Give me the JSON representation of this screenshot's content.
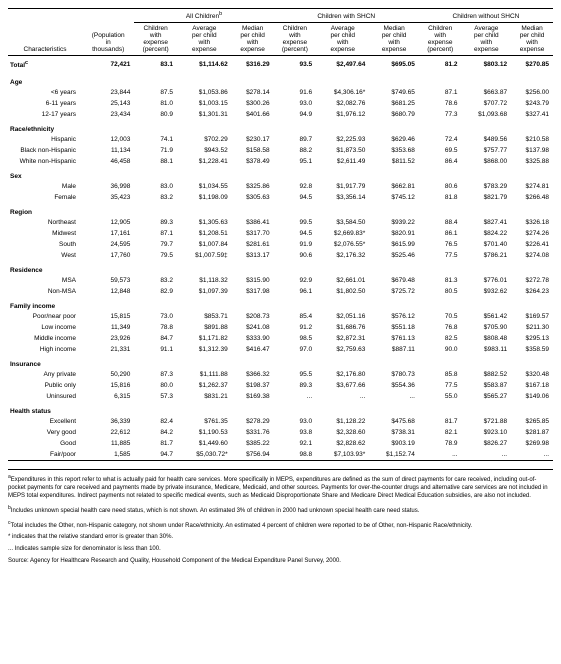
{
  "headers": {
    "char": "Characteristics",
    "pop": "(Population<br>in<br>thousands)",
    "groups": [
      "All Children<sup>b</sup>",
      "Children with SHCN",
      "Children without SHCN"
    ],
    "sub": [
      "Children<br>with<br>expense<br>(percent)",
      "Average<br>per child<br>with<br>expense",
      "Median<br>per child<br>with<br>expense"
    ]
  },
  "sections": [
    {
      "title": "Total<sup>c</sup>",
      "isTotal": true,
      "rows": [
        {
          "label": "",
          "vals": [
            "72,421",
            "83.1",
            "$1,114.62",
            "$316.29",
            "93.5",
            "$2,497.64",
            "$695.05",
            "81.2",
            "$803.12",
            "$270.85"
          ]
        }
      ]
    },
    {
      "title": "Age",
      "rows": [
        {
          "label": "<6 years",
          "vals": [
            "23,844",
            "87.5",
            "$1,053.86",
            "$278.14",
            "91.6",
            "$4,306.16*",
            "$749.65",
            "87.1",
            "$663.87",
            "$256.00"
          ]
        },
        {
          "label": "6-11 years",
          "vals": [
            "25,143",
            "81.0",
            "$1,003.15",
            "$300.26",
            "93.0",
            "$2,082.76",
            "$681.25",
            "78.6",
            "$707.72",
            "$243.79"
          ]
        },
        {
          "label": "12-17 years",
          "vals": [
            "23,434",
            "80.9",
            "$1,301.31",
            "$401.66",
            "94.9",
            "$1,976.12",
            "$680.79",
            "77.3",
            "$1,093.68",
            "$327.41"
          ]
        }
      ]
    },
    {
      "title": "Race/ethnicity",
      "rows": [
        {
          "label": "Hispanic",
          "vals": [
            "12,003",
            "74.1",
            "$702.29",
            "$230.17",
            "89.7",
            "$2,225.93",
            "$629.46",
            "72.4",
            "$489.56",
            "$210.58"
          ]
        },
        {
          "label": "Black non-Hispanic",
          "vals": [
            "11,134",
            "71.9",
            "$943.52",
            "$158.58",
            "88.2",
            "$1,873.50",
            "$353.68",
            "69.5",
            "$757.77",
            "$137.98"
          ]
        },
        {
          "label": "White non-Hispanic",
          "vals": [
            "46,458",
            "88.1",
            "$1,228.41",
            "$378.49",
            "95.1",
            "$2,611.49",
            "$811.52",
            "86.4",
            "$868.00",
            "$325.88"
          ]
        }
      ]
    },
    {
      "title": "Sex",
      "rows": [
        {
          "label": "Male",
          "vals": [
            "36,998",
            "83.0",
            "$1,034.55",
            "$325.86",
            "92.8",
            "$1,917.79",
            "$662.81",
            "80.6",
            "$783.29",
            "$274.81"
          ]
        },
        {
          "label": "Female",
          "vals": [
            "35,423",
            "83.2",
            "$1,198.09",
            "$305.63",
            "94.5",
            "$3,356.14",
            "$745.12",
            "81.8",
            "$821.79",
            "$266.48"
          ]
        }
      ]
    },
    {
      "title": "Region",
      "rows": [
        {
          "label": "Northeast",
          "vals": [
            "12,905",
            "89.3",
            "$1,305.63",
            "$386.41",
            "99.5",
            "$3,584.50",
            "$939.22",
            "88.4",
            "$827.41",
            "$326.18"
          ]
        },
        {
          "label": "Midwest",
          "vals": [
            "17,161",
            "87.1",
            "$1,208.51",
            "$317.70",
            "94.5",
            "$2,669.83*",
            "$820.91",
            "86.1",
            "$824.22",
            "$274.26"
          ]
        },
        {
          "label": "South",
          "vals": [
            "24,595",
            "79.7",
            "$1,007.84",
            "$281.61",
            "91.9",
            "$2,076.55*",
            "$615.99",
            "76.5",
            "$701.40",
            "$226.41"
          ]
        },
        {
          "label": "West",
          "vals": [
            "17,760",
            "79.5",
            "$1,007.59‡",
            "$313.17",
            "90.6",
            "$2,176.32",
            "$525.46",
            "77.5",
            "$786.21",
            "$274.08"
          ]
        }
      ]
    },
    {
      "title": "Residence",
      "rows": [
        {
          "label": "MSA",
          "vals": [
            "59,573",
            "83.2",
            "$1,118.32",
            "$315.90",
            "92.9",
            "$2,661.01",
            "$679.48",
            "81.3",
            "$776.01",
            "$272.78"
          ]
        },
        {
          "label": "Non-MSA",
          "vals": [
            "12,848",
            "82.9",
            "$1,097.39",
            "$317.98",
            "96.1",
            "$1,802.50",
            "$725.72",
            "80.5",
            "$932.62",
            "$264.23"
          ]
        }
      ]
    },
    {
      "title": "Family income",
      "rows": [
        {
          "label": "Poor/near poor",
          "vals": [
            "15,815",
            "73.0",
            "$853.71",
            "$208.73",
            "85.4",
            "$2,051.16",
            "$576.12",
            "70.5",
            "$561.42",
            "$169.57"
          ]
        },
        {
          "label": "Low income",
          "vals": [
            "11,349",
            "78.8",
            "$891.88",
            "$241.08",
            "91.2",
            "$1,686.76",
            "$551.18",
            "76.8",
            "$705.90",
            "$211.30"
          ]
        },
        {
          "label": "Middle income",
          "vals": [
            "23,926",
            "84.7",
            "$1,171.82",
            "$333.90",
            "98.5",
            "$2,872.31",
            "$761.13",
            "82.5",
            "$808.48",
            "$295.13"
          ]
        },
        {
          "label": "High income",
          "vals": [
            "21,331",
            "91.1",
            "$1,312.39",
            "$416.47",
            "97.0",
            "$2,759.63",
            "$887.11",
            "90.0",
            "$983.11",
            "$358.59"
          ]
        }
      ]
    },
    {
      "title": "Insurance",
      "rows": [
        {
          "label": "Any private",
          "vals": [
            "50,290",
            "87.3",
            "$1,111.88",
            "$366.32",
            "95.5",
            "$2,176.80",
            "$780.73",
            "85.8",
            "$882.52",
            "$320.48"
          ]
        },
        {
          "label": "Public only",
          "vals": [
            "15,816",
            "80.0",
            "$1,262.37",
            "$198.37",
            "89.3",
            "$3,677.66",
            "$554.36",
            "77.5",
            "$583.87",
            "$167.18"
          ]
        },
        {
          "label": "Uninsured",
          "vals": [
            "6,315",
            "57.3",
            "$831.21",
            "$169.38",
            "...",
            "...",
            "...",
            "55.0",
            "$565.27",
            "$149.06"
          ]
        }
      ]
    },
    {
      "title": "Health status",
      "rows": [
        {
          "label": "Excellent",
          "vals": [
            "36,339",
            "82.4",
            "$761.35",
            "$278.29",
            "93.0",
            "$1,128.22",
            "$475.68",
            "81.7",
            "$721.88",
            "$265.85"
          ]
        },
        {
          "label": "Very good",
          "vals": [
            "22,612",
            "84.2",
            "$1,190.53",
            "$331.76",
            "93.8",
            "$2,328.60",
            "$738.31",
            "82.1",
            "$923.10",
            "$281.87"
          ]
        },
        {
          "label": "Good",
          "vals": [
            "11,885",
            "81.7",
            "$1,449.60",
            "$385.22",
            "92.1",
            "$2,828.62",
            "$903.19",
            "78.9",
            "$826.27",
            "$269.98"
          ]
        },
        {
          "label": "Fair/poor",
          "vals": [
            "1,585",
            "94.7",
            "$5,030.72*",
            "$756.94",
            "98.8",
            "$7,103.93*",
            "$1,152.74",
            "...",
            "...",
            "..."
          ]
        }
      ]
    }
  ],
  "footnotes": [
    "<sup>a</sup>Expenditures in this report refer to what is actually paid for health care services. More specifically in MEPS, expenditures are defined as the sum of direct payments for care received, including out-of-pocket payments for care received and payments made by private insurance, Medicare, Medicaid, and other sources. Payments for over-the-counter drugs and alternative care services are not included in MEPS total expenditures. Indirect payments not related to specific medical events, such as Medicaid Disproportionate Share and Medicare Direct Medical Education subsidies, are also not included.",
    "<sup>b</sup>Includes unknown special health care need status, which is not shown. An estimated 3% of children in 2000 had unknown special health care need status.",
    "<sup>c</sup>Total includes the Other, non-Hispanic category, not shown under Race/ethnicity. An estimated 4 percent of children were reported to be of Other, non-Hispanic Race/ethnicity.",
    "* indicates that the relative standard error is greater than 30%.",
    "... Indicates sample size for denominator is less than 100.",
    "Source: Agency for Healthcare Research and Quality, Household Component of the Medical Expenditure Panel Survey, 2000."
  ]
}
